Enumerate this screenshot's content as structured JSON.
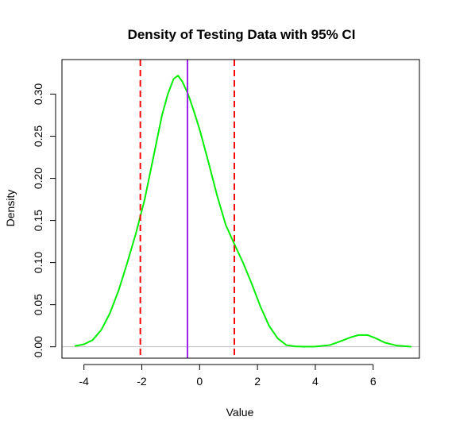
{
  "chart_data": {
    "type": "line",
    "title": "Density of Testing Data with 95% CI",
    "xlabel": "Value",
    "ylabel": "Density",
    "xlim": [
      -4.76,
      7.6
    ],
    "ylim": [
      -0.0135,
      0.341
    ],
    "x_ticks": [
      -4,
      -2,
      0,
      2,
      4,
      6
    ],
    "x_tick_labels": [
      "-4",
      "-2",
      "0",
      "2",
      "4",
      "6"
    ],
    "y_ticks": [
      0.0,
      0.05,
      0.1,
      0.15,
      0.2,
      0.25,
      0.3
    ],
    "y_tick_labels": [
      "0.00",
      "0.05",
      "0.10",
      "0.15",
      "0.20",
      "0.25",
      "0.30"
    ],
    "grid": false,
    "series": [
      {
        "color": "#00ee00",
        "x": [
          -4.3,
          -4.0,
          -3.7,
          -3.4,
          -3.1,
          -2.8,
          -2.5,
          -2.2,
          -1.9,
          -1.6,
          -1.3,
          -1.1,
          -0.9,
          -0.75,
          -0.6,
          -0.4,
          -0.2,
          0.0,
          0.3,
          0.6,
          0.9,
          1.2,
          1.5,
          1.8,
          2.1,
          2.4,
          2.7,
          3.0,
          3.3,
          3.6,
          4.0,
          4.5,
          4.9,
          5.2,
          5.5,
          5.8,
          6.1,
          6.4,
          6.8,
          7.3
        ],
        "y": [
          0.001,
          0.003,
          0.008,
          0.02,
          0.04,
          0.067,
          0.1,
          0.135,
          0.175,
          0.225,
          0.275,
          0.3,
          0.318,
          0.322,
          0.315,
          0.3,
          0.28,
          0.258,
          0.22,
          0.18,
          0.145,
          0.122,
          0.1,
          0.075,
          0.048,
          0.025,
          0.01,
          0.002,
          0.0005,
          0.0002,
          0.0003,
          0.002,
          0.007,
          0.011,
          0.014,
          0.014,
          0.01,
          0.005,
          0.0015,
          0.0002
        ]
      }
    ],
    "reference_lines": [
      {
        "x": -2.05,
        "color": "#ff0000",
        "style": "dashed"
      },
      {
        "x": 1.2,
        "color": "#ff0000",
        "style": "dashed"
      },
      {
        "x": -0.42,
        "color": "#a020f0",
        "style": "solid"
      }
    ],
    "baseline": {
      "y": 0,
      "color": "#bebebe"
    }
  }
}
